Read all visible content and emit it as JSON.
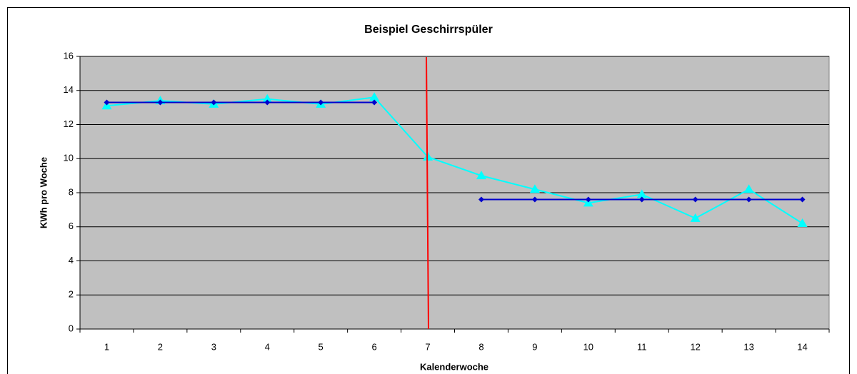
{
  "chart_data": {
    "type": "line",
    "title": "Beispiel Geschirrspüler",
    "x_label": "Kalenderwoche",
    "y_label": "KWh pro Woche",
    "categories": [
      "1",
      "2",
      "3",
      "4",
      "5",
      "6",
      "7",
      "8",
      "9",
      "10",
      "11",
      "12",
      "13",
      "14"
    ],
    "series": [
      {
        "color": "#00ffff",
        "marker": "triangle",
        "values": [
          13.1,
          13.4,
          13.2,
          13.5,
          13.2,
          13.6,
          10.1,
          9.0,
          8.2,
          7.4,
          7.9,
          6.5,
          8.2,
          6.2
        ]
      },
      {
        "color": "#0000cc",
        "marker": "diamond",
        "values": [
          13.3,
          13.3,
          13.3,
          13.3,
          13.3,
          13.3,
          null,
          7.6,
          7.6,
          7.6,
          7.6,
          7.6,
          7.6,
          7.6
        ]
      }
    ],
    "ylim": [
      0,
      16
    ],
    "yticks": [
      0,
      2,
      4,
      6,
      8,
      10,
      12,
      14,
      16
    ],
    "grid": true,
    "plot_background": "#c0c0c0"
  }
}
